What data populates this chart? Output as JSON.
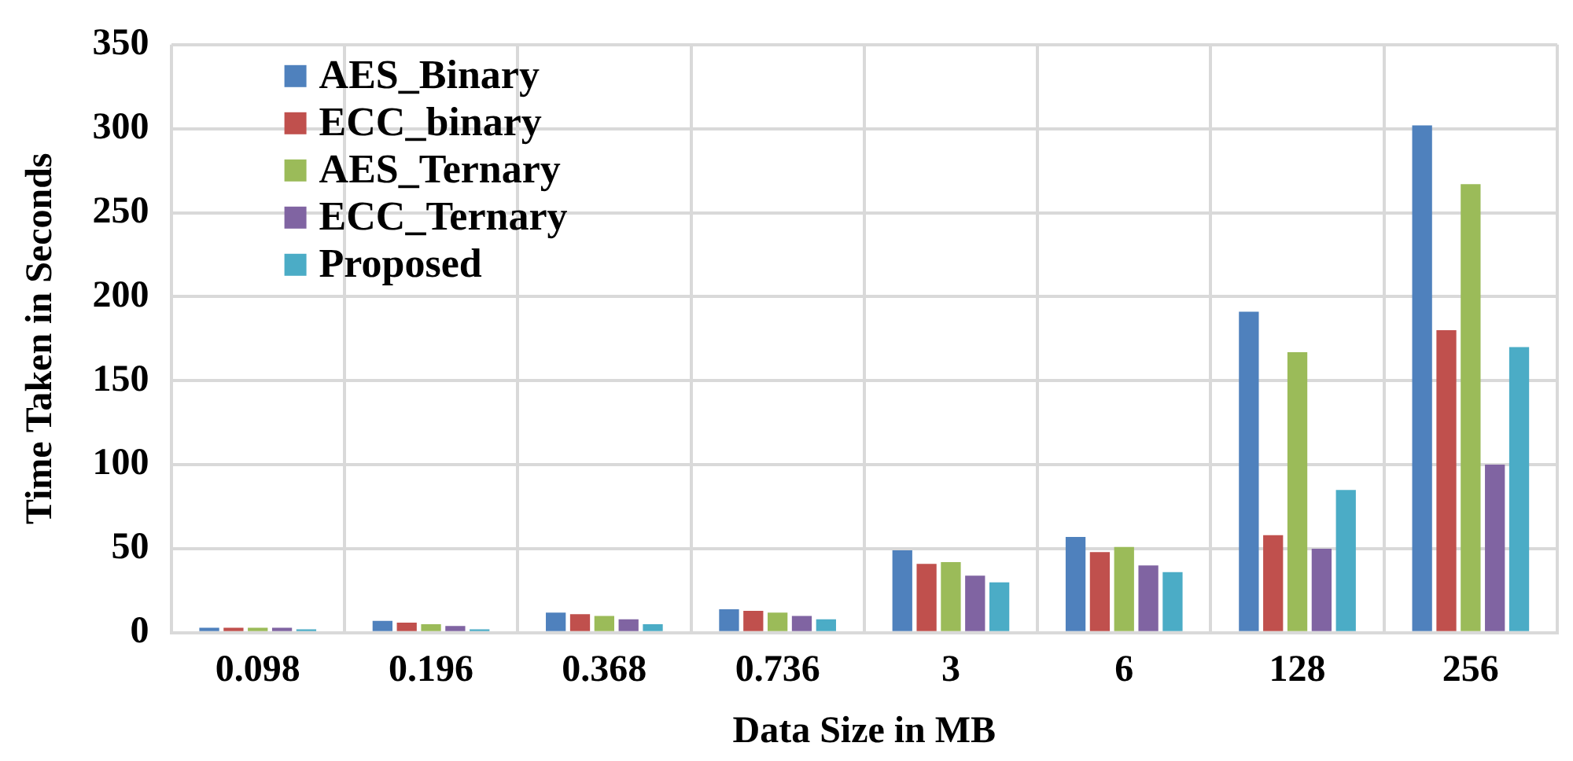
{
  "chart_data": {
    "type": "bar",
    "xlabel": "Data Size in MB",
    "ylabel": "Time Taken in Seconds",
    "categories": [
      "0.098",
      "0.196",
      "0.368",
      "0.736",
      "3",
      "6",
      "128",
      "256"
    ],
    "series": [
      {
        "name": "AES_Binary",
        "color": "#4f81bd",
        "values": [
          3,
          7,
          12,
          14,
          49,
          57,
          191,
          302
        ]
      },
      {
        "name": "ECC_binary",
        "color": "#c0504d",
        "values": [
          3,
          6,
          11,
          13,
          41,
          48,
          58,
          180
        ]
      },
      {
        "name": "AES_Ternary",
        "color": "#9bbb59",
        "values": [
          3,
          5,
          10,
          12,
          42,
          51,
          167,
          267
        ]
      },
      {
        "name": "ECC_Ternary",
        "color": "#8064a2",
        "values": [
          3,
          4,
          8,
          10,
          34,
          40,
          50,
          100
        ]
      },
      {
        "name": "Proposed",
        "color": "#4bacc6",
        "values": [
          2,
          2,
          5,
          8,
          30,
          36,
          85,
          170
        ]
      }
    ],
    "ylim": [
      0,
      350
    ],
    "yticks": [
      0,
      50,
      100,
      150,
      200,
      250,
      300,
      350
    ],
    "grid": true,
    "legend": "top left"
  }
}
